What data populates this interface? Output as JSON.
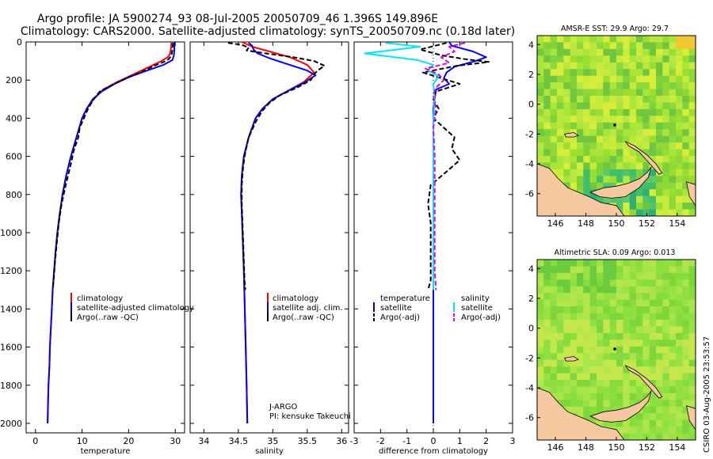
{
  "figure": {
    "title_line1": "Argo profile: JA 5900274_93 08-Jul-2005 20050709_46 1.396S 149.896E",
    "title_line2": "Climatology: CARS2000. Satellite-adjusted climatology: synTS_20050709.nc (0.18d later)",
    "side_stamp": "CSIRO 03-Aug-2005 23:53:57",
    "float_info_1": "J-ARGO",
    "float_info_2": "PI: kensuke Takeuchi"
  },
  "colors": {
    "climatology": "#ff0000",
    "satellite": "#0000ff",
    "argo": "#000000",
    "satellite_salinity": "#00e5ff",
    "argo_salinity": "#e000e0",
    "land": "#f5c8a0"
  },
  "chart_data": [
    {
      "id": "temperature",
      "type": "line",
      "xlabel": "temperature",
      "xlim": [
        -2,
        32
      ],
      "ylim": [
        0,
        2050
      ],
      "x_ticks": [
        0,
        10,
        20,
        30
      ],
      "y_ticks": [
        0,
        200,
        400,
        600,
        800,
        1000,
        1200,
        1400,
        1600,
        1800,
        2000
      ],
      "legend": [
        "climatology",
        "satellite-adjusted climatology",
        "Argo(..raw -QC)"
      ],
      "series": [
        {
          "name": "climatology",
          "color": "#ff0000",
          "dash": false,
          "points": [
            [
              29.2,
              0
            ],
            [
              29.1,
              30
            ],
            [
              28.9,
              60
            ],
            [
              28.4,
              80
            ],
            [
              27.0,
              100
            ],
            [
              24.5,
              130
            ],
            [
              21.0,
              170
            ],
            [
              17.5,
              210
            ],
            [
              14.5,
              250
            ],
            [
              12.5,
              300
            ],
            [
              11.0,
              350
            ],
            [
              10.0,
              400
            ],
            [
              8.8,
              500
            ],
            [
              7.6,
              600
            ],
            [
              6.6,
              700
            ],
            [
              5.8,
              800
            ],
            [
              5.2,
              900
            ],
            [
              4.7,
              1000
            ],
            [
              4.3,
              1100
            ],
            [
              4.0,
              1200
            ],
            [
              3.7,
              1300
            ],
            [
              3.5,
              1400
            ],
            [
              3.3,
              1500
            ],
            [
              3.1,
              1600
            ],
            [
              3.0,
              1700
            ],
            [
              2.8,
              1800
            ],
            [
              2.7,
              1900
            ],
            [
              2.6,
              2000
            ]
          ]
        },
        {
          "name": "satellite-adjusted climatology",
          "color": "#0000ff",
          "dash": false,
          "points": [
            [
              29.8,
              0
            ],
            [
              29.8,
              40
            ],
            [
              29.7,
              70
            ],
            [
              29.4,
              95
            ],
            [
              27.5,
              120
            ],
            [
              24.0,
              150
            ],
            [
              20.5,
              180
            ],
            [
              17.0,
              220
            ],
            [
              14.2,
              260
            ],
            [
              12.3,
              300
            ],
            [
              11.0,
              350
            ],
            [
              10.0,
              400
            ],
            [
              8.8,
              500
            ],
            [
              7.6,
              600
            ],
            [
              6.6,
              700
            ],
            [
              5.8,
              800
            ],
            [
              5.2,
              900
            ],
            [
              4.7,
              1000
            ],
            [
              4.3,
              1100
            ],
            [
              4.0,
              1200
            ],
            [
              3.7,
              1300
            ],
            [
              3.5,
              1400
            ],
            [
              3.3,
              1500
            ],
            [
              3.1,
              1600
            ],
            [
              3.0,
              1700
            ],
            [
              2.8,
              1800
            ],
            [
              2.7,
              1900
            ],
            [
              2.6,
              2000
            ]
          ]
        },
        {
          "name": "Argo(..raw -QC)",
          "color": "#000000",
          "dash": true,
          "points": [
            [
              29.5,
              5
            ],
            [
              29.4,
              40
            ],
            [
              29.2,
              70
            ],
            [
              28.6,
              90
            ],
            [
              27.5,
              105
            ],
            [
              25.5,
              125
            ],
            [
              22.5,
              160
            ],
            [
              19.5,
              190
            ],
            [
              16.5,
              225
            ],
            [
              13.8,
              260
            ],
            [
              12.5,
              300
            ],
            [
              11.3,
              350
            ],
            [
              10.4,
              400
            ],
            [
              9.5,
              450
            ],
            [
              9.2,
              500
            ],
            [
              8.2,
              570
            ],
            [
              7.8,
              620
            ],
            [
              7.2,
              680
            ],
            [
              6.5,
              750
            ],
            [
              5.6,
              850
            ],
            [
              5.0,
              950
            ],
            [
              4.6,
              1050
            ],
            [
              4.2,
              1150
            ],
            [
              3.9,
              1250
            ],
            [
              3.7,
              1300
            ]
          ]
        }
      ]
    },
    {
      "id": "salinity",
      "type": "line",
      "xlabel": "salinity",
      "xlim": [
        33.8,
        36.1
      ],
      "ylim": [
        0,
        2050
      ],
      "x_ticks": [
        34,
        34.5,
        35,
        35.5,
        36
      ],
      "legend": [
        "climatology",
        "satellite adj. clim.",
        "Argo(..raw -QC)"
      ],
      "series": [
        {
          "name": "climatology",
          "color": "#ff0000",
          "dash": false,
          "points": [
            [
              34.55,
              0
            ],
            [
              34.7,
              25
            ],
            [
              34.95,
              50
            ],
            [
              35.25,
              80
            ],
            [
              35.5,
              120
            ],
            [
              35.6,
              160
            ],
            [
              35.45,
              210
            ],
            [
              35.2,
              260
            ],
            [
              35.0,
              300
            ],
            [
              34.85,
              350
            ],
            [
              34.75,
              400
            ],
            [
              34.65,
              500
            ],
            [
              34.58,
              600
            ],
            [
              34.55,
              700
            ],
            [
              34.54,
              800
            ],
            [
              34.55,
              900
            ],
            [
              34.56,
              1000
            ],
            [
              34.58,
              1200
            ],
            [
              34.6,
              1500
            ],
            [
              34.62,
              1800
            ],
            [
              34.63,
              2000
            ]
          ]
        },
        {
          "name": "satellite adj. clim.",
          "color": "#0000ff",
          "dash": false,
          "points": [
            [
              34.65,
              5
            ],
            [
              34.7,
              20
            ],
            [
              34.72,
              40
            ],
            [
              34.78,
              60
            ],
            [
              34.95,
              85
            ],
            [
              35.2,
              115
            ],
            [
              35.5,
              150
            ],
            [
              35.62,
              175
            ],
            [
              35.45,
              215
            ],
            [
              35.2,
              260
            ],
            [
              35.0,
              300
            ],
            [
              34.85,
              350
            ],
            [
              34.75,
              400
            ],
            [
              34.65,
              500
            ],
            [
              34.58,
              600
            ],
            [
              34.55,
              700
            ],
            [
              34.54,
              800
            ],
            [
              34.55,
              900
            ],
            [
              34.56,
              1000
            ],
            [
              34.58,
              1200
            ],
            [
              34.6,
              1500
            ],
            [
              34.62,
              1800
            ],
            [
              34.63,
              2000
            ]
          ]
        },
        {
          "name": "Argo(..raw -QC)",
          "color": "#000000",
          "dash": true,
          "points": [
            [
              34.35,
              5
            ],
            [
              34.55,
              15
            ],
            [
              34.65,
              30
            ],
            [
              34.62,
              45
            ],
            [
              34.9,
              60
            ],
            [
              35.3,
              80
            ],
            [
              35.6,
              100
            ],
            [
              35.75,
              125
            ],
            [
              35.65,
              150
            ],
            [
              35.6,
              170
            ],
            [
              35.55,
              200
            ],
            [
              35.35,
              240
            ],
            [
              35.1,
              280
            ],
            [
              34.95,
              320
            ],
            [
              34.85,
              360
            ],
            [
              34.75,
              420
            ],
            [
              34.65,
              500
            ],
            [
              34.6,
              580
            ],
            [
              34.57,
              650
            ],
            [
              34.55,
              750
            ],
            [
              34.55,
              850
            ],
            [
              34.56,
              950
            ],
            [
              34.57,
              1050
            ],
            [
              34.58,
              1150
            ],
            [
              34.59,
              1250
            ],
            [
              34.6,
              1300
            ]
          ]
        }
      ]
    },
    {
      "id": "difference",
      "type": "line",
      "xlabel": "difference from climatology",
      "xlim": [
        -3,
        3
      ],
      "ylim": [
        0,
        2050
      ],
      "x_ticks": [
        -3,
        -2,
        -1,
        0,
        1,
        2,
        3
      ],
      "legend_temperature_title": "temperature",
      "legend_temperature": [
        "satellite",
        "Argo(-adj)"
      ],
      "legend_salinity_title": "salinity",
      "legend_salinity": [
        "satellite",
        "Argo(-adj)"
      ],
      "series": [
        {
          "name": "temperature satellite",
          "color": "#0000ff",
          "dash": false,
          "points": [
            [
              0.6,
              0
            ],
            [
              0.7,
              20
            ],
            [
              1.5,
              50
            ],
            [
              2.0,
              80
            ],
            [
              1.6,
              100
            ],
            [
              0.8,
              130
            ],
            [
              0.5,
              160
            ],
            [
              0.4,
              190
            ],
            [
              0.6,
              220
            ],
            [
              0.1,
              250
            ],
            [
              0.05,
              300
            ],
            [
              0.0,
              350
            ],
            [
              0.0,
              400
            ],
            [
              0.0,
              500
            ],
            [
              0.0,
              700
            ],
            [
              0.0,
              1000
            ],
            [
              0.0,
              1300
            ],
            [
              0.0,
              1600
            ],
            [
              0.0,
              2000
            ]
          ]
        },
        {
          "name": "temperature Argo(-adj)",
          "color": "#000000",
          "dash": true,
          "points": [
            [
              0.5,
              5
            ],
            [
              -0.5,
              40
            ],
            [
              0.3,
              70
            ],
            [
              1.2,
              90
            ],
            [
              2.1,
              105
            ],
            [
              0.9,
              125
            ],
            [
              -0.4,
              160
            ],
            [
              0.3,
              190
            ],
            [
              1.0,
              220
            ],
            [
              0.1,
              260
            ],
            [
              0.0,
              300
            ],
            [
              0.2,
              350
            ],
            [
              0.0,
              400
            ],
            [
              0.4,
              450
            ],
            [
              0.8,
              500
            ],
            [
              0.7,
              560
            ],
            [
              1.0,
              620
            ],
            [
              0.5,
              680
            ],
            [
              -0.1,
              750
            ],
            [
              -0.2,
              850
            ],
            [
              -0.1,
              950
            ],
            [
              -0.1,
              1050
            ],
            [
              -0.1,
              1150
            ],
            [
              -0.1,
              1250
            ],
            [
              -0.2,
              1300
            ]
          ]
        },
        {
          "name": "salinity satellite",
          "color": "#00e5ff",
          "dash": false,
          "points": [
            [
              -1.8,
              5
            ],
            [
              -0.5,
              25
            ],
            [
              -2.6,
              60
            ],
            [
              -0.6,
              95
            ],
            [
              0.0,
              120
            ],
            [
              -0.2,
              150
            ],
            [
              0.2,
              180
            ],
            [
              0.0,
              220
            ],
            [
              0.05,
              300
            ],
            [
              0.0,
              400
            ],
            [
              0.0,
              600
            ],
            [
              0.0,
              900
            ],
            [
              0.0,
              1300
            ]
          ]
        },
        {
          "name": "salinity Argo(-adj)",
          "color": "#e000e0",
          "dash": true,
          "points": [
            [
              1.2,
              5
            ],
            [
              0.6,
              25
            ],
            [
              0.8,
              50
            ],
            [
              0.3,
              80
            ],
            [
              0.6,
              110
            ],
            [
              -0.3,
              140
            ],
            [
              0.2,
              170
            ],
            [
              0.4,
              200
            ],
            [
              0.1,
              240
            ],
            [
              0.0,
              280
            ],
            [
              0.1,
              350
            ],
            [
              0.0,
              450
            ],
            [
              0.05,
              600
            ],
            [
              0.05,
              800
            ],
            [
              0.05,
              1000
            ],
            [
              0.05,
              1200
            ],
            [
              0.1,
              1300
            ]
          ]
        }
      ]
    },
    {
      "id": "sst_map",
      "type": "heatmap",
      "title": "AMSR-E SST: 29.9 Argo: 29.7",
      "xlim": [
        144.8,
        155.2
      ],
      "ylim": [
        -7.5,
        4.6
      ],
      "x_ticks": [
        146,
        148,
        150,
        152,
        154
      ],
      "y_ticks": [
        -6,
        -4,
        -2,
        0,
        2,
        4
      ],
      "marker_lonlat": [
        149.896,
        -1.396
      ]
    },
    {
      "id": "sla_map",
      "type": "heatmap",
      "title": "Altimetric SLA: 0.09 Argo: 0.013",
      "xlim": [
        144.8,
        155.2
      ],
      "ylim": [
        -7.5,
        4.6
      ],
      "x_ticks": [
        146,
        148,
        150,
        152,
        154
      ],
      "y_ticks": [
        -6,
        -4,
        -2,
        0,
        2,
        4
      ],
      "marker_lonlat": [
        149.896,
        -1.396
      ]
    }
  ]
}
